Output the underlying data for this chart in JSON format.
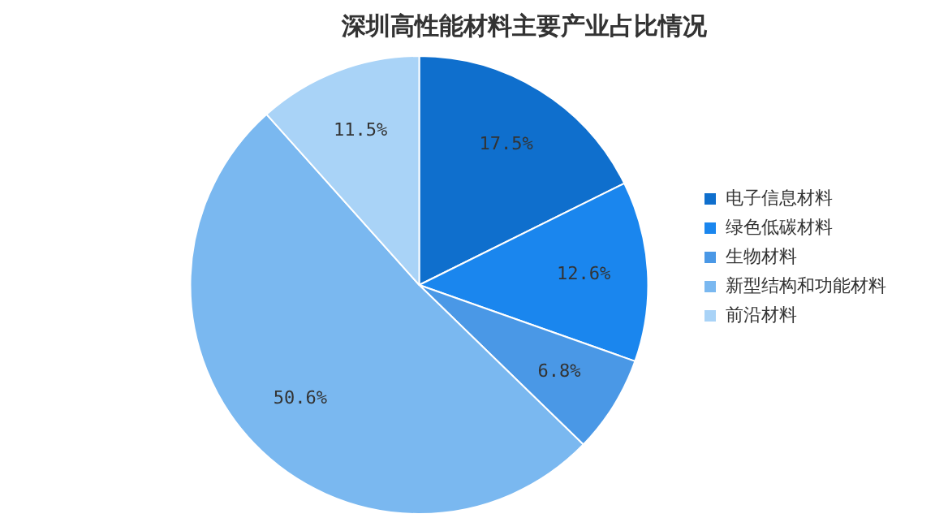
{
  "chart_data": {
    "type": "pie",
    "title": "深圳高性能材料主要产业占比情况",
    "categories": [
      "电子信息材料",
      "绿色低碳材料",
      "生物材料",
      "新型结构和功能材料",
      "前沿材料"
    ],
    "values": [
      17.5,
      12.6,
      6.8,
      50.6,
      11.5
    ],
    "value_labels": [
      "17.5%",
      "12.6%",
      "6.8%",
      "50.6%",
      "11.5%"
    ],
    "colors": [
      "#0f6fcd",
      "#1a86ee",
      "#4a98e6",
      "#7ab8f0",
      "#a9d3f7"
    ],
    "legend": "right"
  }
}
